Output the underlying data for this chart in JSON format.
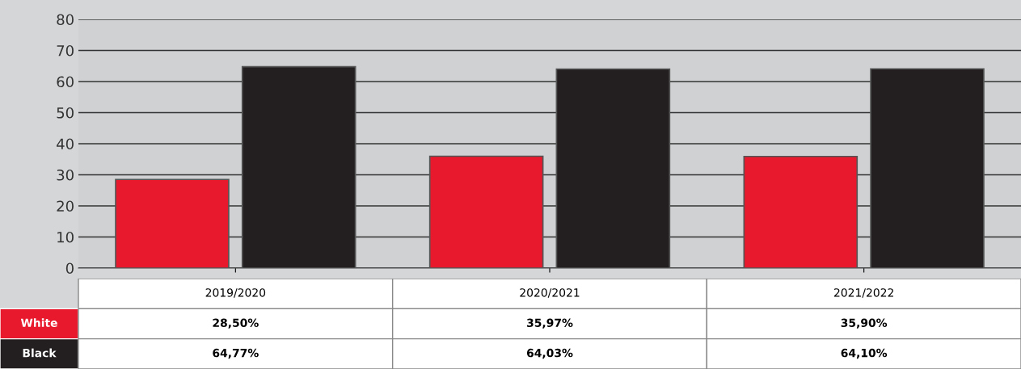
{
  "chart_data": {
    "type": "bar",
    "categories": [
      "2019/2020",
      "2020/2021",
      "2021/2022"
    ],
    "series": [
      {
        "name": "White",
        "color": "#e8192c",
        "values": [
          28.5,
          35.97,
          35.9
        ],
        "value_labels": [
          "28,50%",
          "35,97%",
          "35,90%"
        ]
      },
      {
        "name": "Black",
        "color": "#231f20",
        "values": [
          64.77,
          64.03,
          64.1
        ],
        "value_labels": [
          "64,77%",
          "64,03%",
          "64,10%"
        ]
      }
    ],
    "ylim": [
      0,
      80
    ],
    "yticks": [
      0,
      10,
      20,
      30,
      40,
      50,
      60,
      70,
      80
    ],
    "grid": "y"
  }
}
